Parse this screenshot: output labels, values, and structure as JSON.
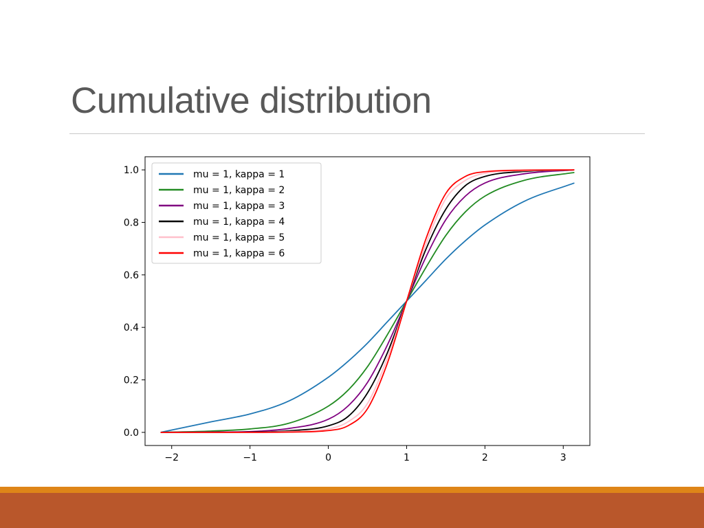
{
  "slide": {
    "title": "Cumulative distribution"
  },
  "theme": {
    "footer_color": "#b9572b",
    "footer_stripe_color": "#de8518",
    "title_color": "#595959"
  },
  "chart_data": {
    "type": "line",
    "title": "",
    "xlabel": "",
    "ylabel": "",
    "xlim": [
      -2.34,
      3.34
    ],
    "ylim": [
      -0.05,
      1.05
    ],
    "xticks": [
      -2,
      -1,
      0,
      1,
      2,
      3
    ],
    "xtick_labels": [
      "−2",
      "−1",
      "0",
      "1",
      "2",
      "3"
    ],
    "yticks": [
      0.0,
      0.2,
      0.4,
      0.6,
      0.8,
      1.0
    ],
    "ytick_labels": [
      "0.0",
      "0.2",
      "0.4",
      "0.6",
      "0.8",
      "1.0"
    ],
    "grid": false,
    "legend_position": "top-left",
    "x": [
      -2.142,
      -1.5,
      -1.0,
      -0.5,
      0.0,
      0.25,
      0.5,
      0.75,
      1.0,
      1.25,
      1.5,
      1.75,
      2.0,
      2.5,
      3.142
    ],
    "series": [
      {
        "name": "mu = 1, kappa = 1",
        "color": "#1f77b4",
        "values": [
          0.0,
          0.04,
          0.07,
          0.12,
          0.21,
          0.27,
          0.34,
          0.42,
          0.5,
          0.58,
          0.66,
          0.73,
          0.79,
          0.88,
          0.95
        ]
      },
      {
        "name": "mu = 1, kappa = 2",
        "color": "#228b22",
        "values": [
          0.0,
          0.005,
          0.013,
          0.035,
          0.1,
          0.16,
          0.25,
          0.37,
          0.5,
          0.63,
          0.75,
          0.84,
          0.9,
          0.96,
          0.99
        ]
      },
      {
        "name": "mu = 1, kappa = 3",
        "color": "#800080",
        "values": [
          0.0,
          0.001,
          0.003,
          0.015,
          0.05,
          0.1,
          0.19,
          0.33,
          0.5,
          0.67,
          0.81,
          0.9,
          0.95,
          0.985,
          1.0
        ]
      },
      {
        "name": "mu = 1, kappa = 4",
        "color": "#000000",
        "values": [
          0.0,
          0.0,
          0.001,
          0.006,
          0.025,
          0.06,
          0.15,
          0.3,
          0.5,
          0.7,
          0.85,
          0.94,
          0.975,
          0.994,
          1.0
        ]
      },
      {
        "name": "mu = 1, kappa = 5",
        "color": "#ffc0cb",
        "values": [
          0.0,
          0.0,
          0.0,
          0.003,
          0.013,
          0.04,
          0.11,
          0.28,
          0.5,
          0.72,
          0.89,
          0.96,
          0.987,
          0.997,
          1.0
        ]
      },
      {
        "name": "mu = 1, kappa = 6",
        "color": "#ff0000",
        "values": [
          0.0,
          0.0,
          0.0,
          0.001,
          0.007,
          0.025,
          0.09,
          0.26,
          0.5,
          0.74,
          0.91,
          0.975,
          0.993,
          0.999,
          1.0
        ]
      }
    ]
  }
}
